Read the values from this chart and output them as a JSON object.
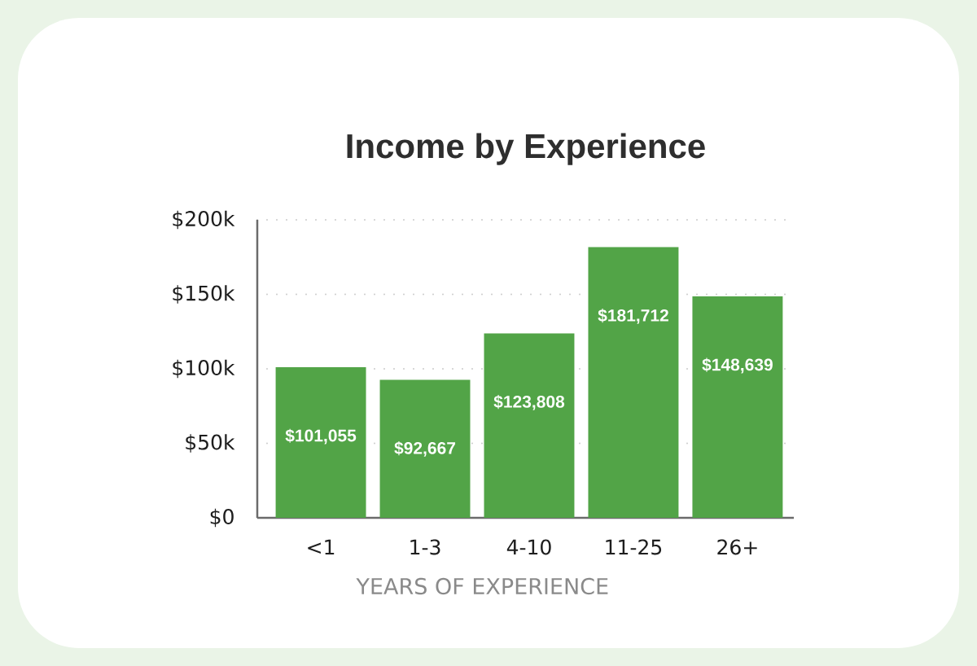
{
  "chart_data": {
    "type": "bar",
    "title": "Income by Experience",
    "xlabel": "YEARS OF EXPERIENCE",
    "categories": [
      "<1",
      "1-3",
      "4-10",
      "11-25",
      "26+"
    ],
    "values": [
      101055,
      92667,
      123808,
      181712,
      148639
    ],
    "value_labels": [
      "$101,055",
      "$92,667",
      "$123,808",
      "$181,712",
      "$148,639"
    ],
    "color": "#52a447",
    "ylim": [
      0,
      200000
    ],
    "yticks": [
      {
        "value": 0,
        "label": "$0"
      },
      {
        "value": 50000,
        "label": "$50k"
      },
      {
        "value": 100000,
        "label": "$100k"
      },
      {
        "value": 150000,
        "label": "$150k"
      },
      {
        "value": 200000,
        "label": "$200k"
      }
    ],
    "grid": "y"
  }
}
